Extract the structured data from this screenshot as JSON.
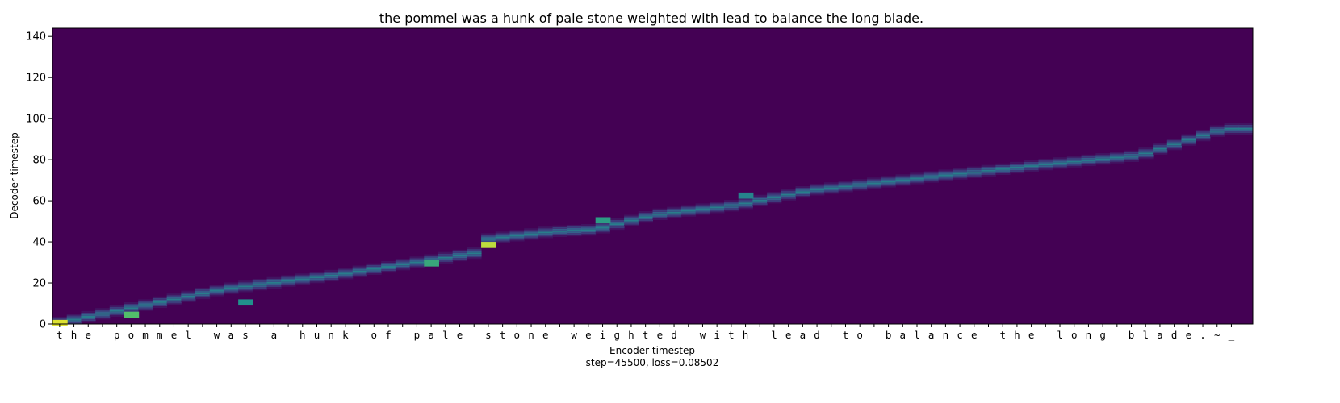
{
  "chart_data": {
    "type": "heatmap",
    "title": "the pommel was a hunk of pale stone weighted with lead to balance the long blade.",
    "xlabel": "Encoder timestep",
    "ylabel": "Decoder timestep",
    "footer": "step=45500, loss=0.08502",
    "x_tick_labels": [
      "t",
      "h",
      "e",
      " ",
      "p",
      "o",
      "m",
      "m",
      "e",
      "l",
      " ",
      "w",
      "a",
      "s",
      " ",
      "a",
      " ",
      "h",
      "u",
      "n",
      "k",
      " ",
      "o",
      "f",
      " ",
      "p",
      "a",
      "l",
      "e",
      " ",
      "s",
      "t",
      "o",
      "n",
      "e",
      " ",
      "w",
      "e",
      "i",
      "g",
      "h",
      "t",
      "e",
      "d",
      " ",
      "w",
      "i",
      "t",
      "h",
      " ",
      "l",
      "e",
      "a",
      "d",
      " ",
      "t",
      "o",
      " ",
      "b",
      "a",
      "l",
      "a",
      "n",
      "c",
      "e",
      " ",
      "t",
      "h",
      "e",
      " ",
      "l",
      "o",
      "n",
      "g",
      " ",
      "b",
      "l",
      "a",
      "d",
      "e",
      ".",
      "~",
      "_"
    ],
    "y_ticks": [
      0,
      20,
      40,
      60,
      80,
      100,
      120,
      140
    ],
    "ylim": [
      0,
      144
    ],
    "xlim": [
      0,
      84
    ],
    "colormap": "viridis",
    "background_color": "#440154",
    "alignment_path": [
      [
        0,
        0
      ],
      [
        12,
        17
      ],
      [
        20,
        24
      ],
      [
        30,
        35
      ],
      [
        30,
        41
      ],
      [
        35,
        45
      ],
      [
        38,
        46
      ],
      [
        42,
        53
      ],
      [
        48,
        58
      ],
      [
        53,
        65
      ],
      [
        62,
        72
      ],
      [
        70,
        78
      ],
      [
        76,
        82
      ],
      [
        82,
        95
      ]
    ],
    "hot_spots": [
      {
        "x": 0,
        "y": 0,
        "value": 0.95
      },
      {
        "x": 30,
        "y": 38,
        "value": 0.9
      },
      {
        "x": 38,
        "y": 50,
        "value": 0.55
      },
      {
        "x": 48,
        "y": 62,
        "value": 0.45
      },
      {
        "x": 5,
        "y": 4,
        "value": 0.7
      },
      {
        "x": 13,
        "y": 10,
        "value": 0.5
      },
      {
        "x": 26,
        "y": 29,
        "value": 0.6
      }
    ]
  }
}
